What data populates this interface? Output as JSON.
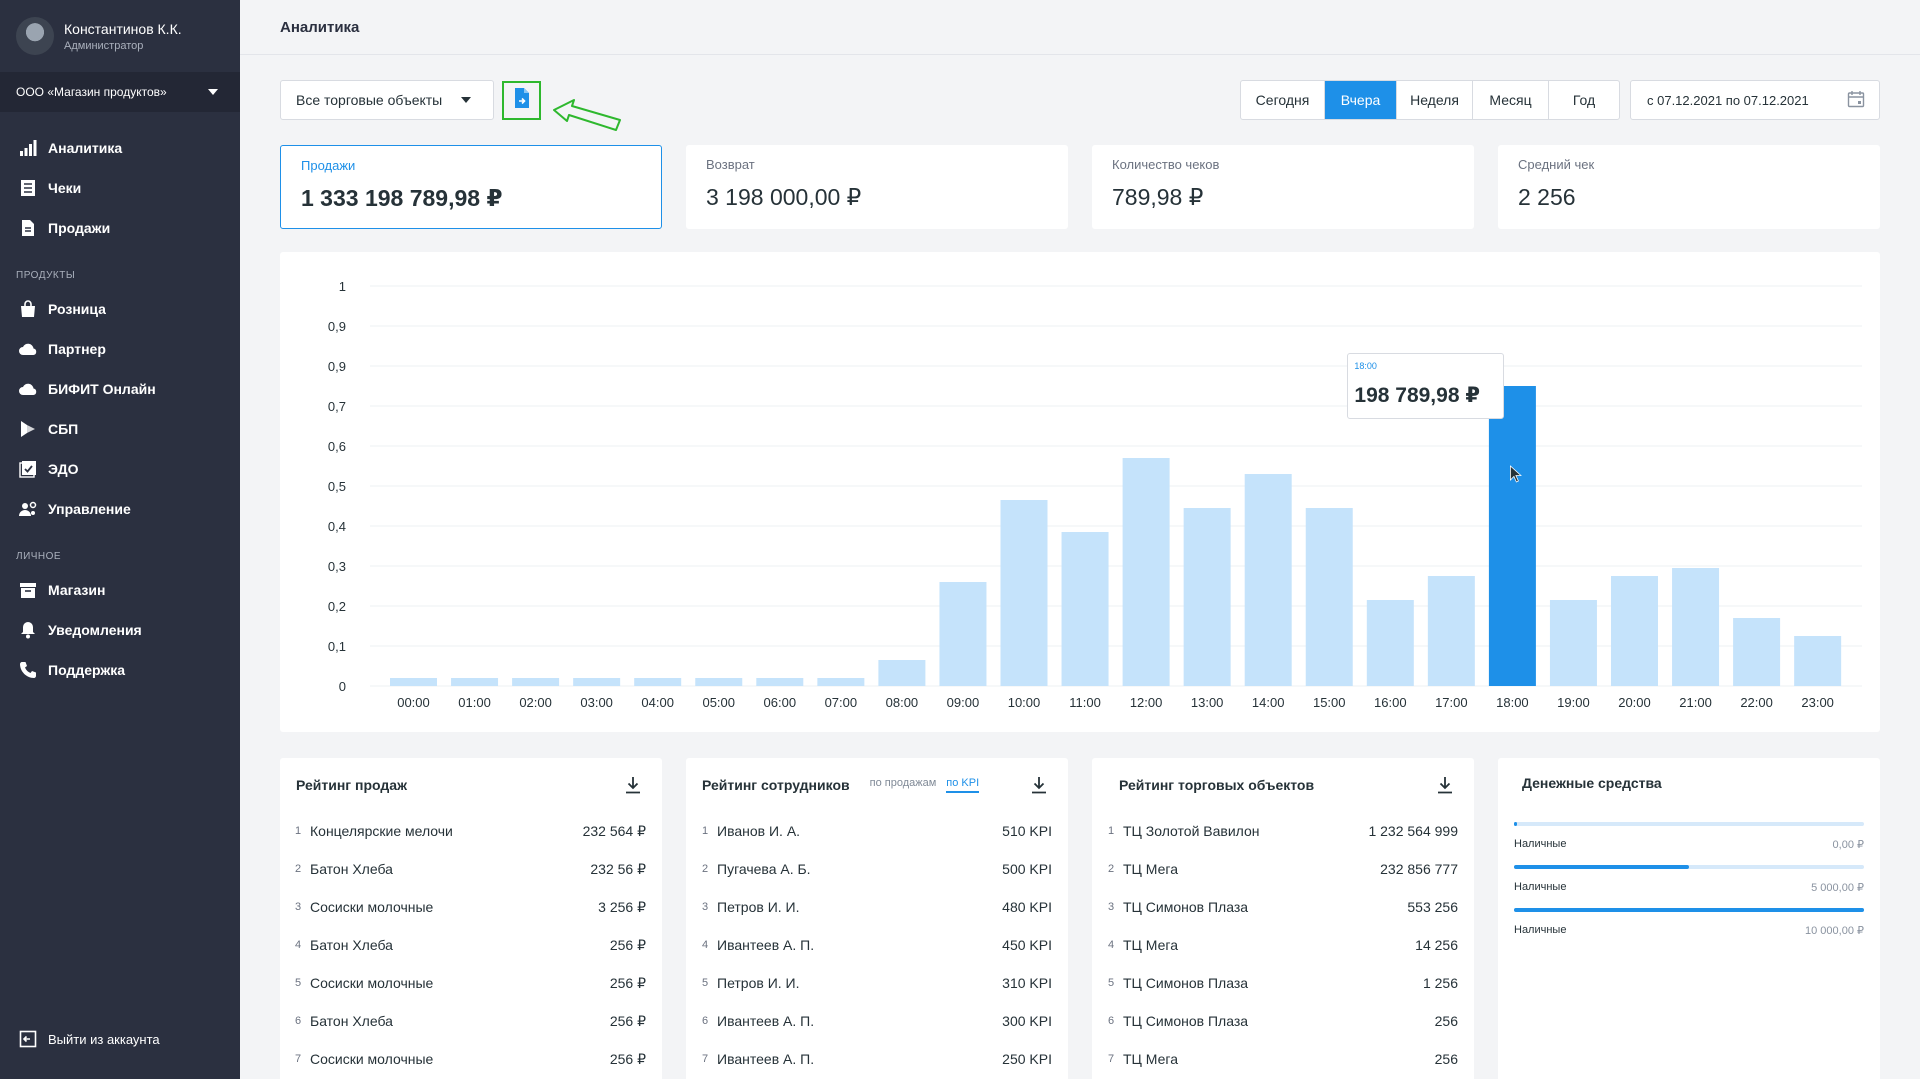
{
  "profile": {
    "name": "Константинов К.К.",
    "role": "Администратор"
  },
  "company": "ООО «Магазин продуктов»",
  "nav": {
    "main": [
      {
        "label": "Аналитика",
        "icon": "bar-chart-icon"
      },
      {
        "label": "Чеки",
        "icon": "receipt-icon"
      },
      {
        "label": "Продажи",
        "icon": "document-icon"
      }
    ],
    "products_title": "ПРОДУКТЫ",
    "products": [
      {
        "label": "Розница",
        "icon": "shopping-bag-icon"
      },
      {
        "label": "Партнер",
        "icon": "cloud-icon"
      },
      {
        "label": "БИФИТ Онлайн",
        "icon": "cloud-icon"
      },
      {
        "label": "СБП",
        "icon": "sbp-logo-icon"
      },
      {
        "label": "ЭДО",
        "icon": "edo-icon"
      },
      {
        "label": "Управление",
        "icon": "people-gear-icon"
      }
    ],
    "personal_title": "ЛИЧНОЕ",
    "personal": [
      {
        "label": "Магазин",
        "icon": "store-box-icon"
      },
      {
        "label": "Уведомления",
        "icon": "bell-icon"
      },
      {
        "label": "Поддержка",
        "icon": "phone-icon"
      }
    ],
    "logout": "Выйти из аккаунта"
  },
  "header": {
    "title": "Аналитика"
  },
  "toolbar": {
    "objects_select": "Все торговые объекты",
    "periods": [
      "Сегодня",
      "Вчера",
      "Неделя",
      "Месяц",
      "Год"
    ],
    "active_period": "Вчера",
    "date_range": "с 07.12.2021 по 07.12.2021"
  },
  "kpis": [
    {
      "label": "Продажи",
      "value": "1 333 198 789,98 ₽",
      "active": true
    },
    {
      "label": "Возврат",
      "value": "3 198 000,00 ₽"
    },
    {
      "label": "Количество чеков",
      "value": "789,98 ₽"
    },
    {
      "label": "Средний чек",
      "value": "2 256"
    }
  ],
  "colors": {
    "accent": "#1e90e8",
    "bar": "#c5e3fb",
    "sidebar": "#2b3040",
    "annotation": "#2eb82e"
  },
  "chart_data": {
    "type": "bar",
    "categories": [
      "00:00",
      "01:00",
      "02:00",
      "03:00",
      "04:00",
      "05:00",
      "06:00",
      "07:00",
      "08:00",
      "09:00",
      "10:00",
      "11:00",
      "12:00",
      "13:00",
      "14:00",
      "15:00",
      "16:00",
      "17:00",
      "18:00",
      "19:00",
      "20:00",
      "21:00",
      "22:00",
      "23:00"
    ],
    "values": [
      0.02,
      0.02,
      0.02,
      0.02,
      0.02,
      0.02,
      0.02,
      0.02,
      0.065,
      0.26,
      0.465,
      0.385,
      0.57,
      0.445,
      0.53,
      0.445,
      0.215,
      0.275,
      0.75,
      0.215,
      0.275,
      0.295,
      0.17,
      0.125
    ],
    "y_ticks": [
      "0",
      "0,1",
      "0,2",
      "0,3",
      "0,4",
      "0,5",
      "0,6",
      "0,7",
      "0,9",
      "0,9",
      "1"
    ],
    "ylim": [
      0,
      1
    ],
    "highlight_index": 18,
    "tooltip": {
      "time": "18:00",
      "value": "198 789,98 ₽"
    },
    "grid": true
  },
  "sales_rating": {
    "title": "Рейтинг продаж",
    "rows": [
      {
        "n": "1",
        "label": "Концелярские мелочи",
        "value": "232 564 ₽"
      },
      {
        "n": "2",
        "label": "Батон Хлеба",
        "value": "232 56 ₽"
      },
      {
        "n": "3",
        "label": "Сосиски молочные",
        "value": "3 256 ₽"
      },
      {
        "n": "4",
        "label": "Батон Хлеба",
        "value": "256 ₽"
      },
      {
        "n": "5",
        "label": "Сосиски молочные",
        "value": "256 ₽"
      },
      {
        "n": "6",
        "label": "Батон Хлеба",
        "value": "256 ₽"
      },
      {
        "n": "7",
        "label": "Сосиски молочные",
        "value": "256 ₽"
      }
    ]
  },
  "staff_rating": {
    "title": "Рейтинг сотрудников",
    "switch": [
      "по продажам",
      "по KPI"
    ],
    "active_switch": "по KPI",
    "rows": [
      {
        "n": "1",
        "label": "Иванов И. А.",
        "value": "510 KPI"
      },
      {
        "n": "2",
        "label": "Пугачева А. Б.",
        "value": "500 KPI"
      },
      {
        "n": "3",
        "label": "Петров И. И.",
        "value": "480 KPI"
      },
      {
        "n": "4",
        "label": "Ивантеев А. П.",
        "value": "450 KPI"
      },
      {
        "n": "5",
        "label": "Петров И. И.",
        "value": "310 KPI"
      },
      {
        "n": "6",
        "label": "Ивантеев А. П.",
        "value": "300 KPI"
      },
      {
        "n": "7",
        "label": "Ивантеев А. П.",
        "value": "250 KPI"
      }
    ]
  },
  "objects_rating": {
    "title": "Рейтинг торговых объектов",
    "rows": [
      {
        "n": "1",
        "label": "ТЦ Золотой Вавилон",
        "value": "1 232 564 999"
      },
      {
        "n": "2",
        "label": "ТЦ Мега",
        "value": "232 856 777"
      },
      {
        "n": "3",
        "label": "ТЦ Симонов Плаза",
        "value": "553 256"
      },
      {
        "n": "4",
        "label": "ТЦ Мега",
        "value": "14 256"
      },
      {
        "n": "5",
        "label": "ТЦ Симонов Плаза",
        "value": "1 256"
      },
      {
        "n": "6",
        "label": "ТЦ Симонов Плаза",
        "value": "256"
      },
      {
        "n": "7",
        "label": "ТЦ Мега",
        "value": "256"
      }
    ]
  },
  "money": {
    "title": "Денежные средства",
    "rows": [
      {
        "label": "Наличные",
        "value": "0,00 ₽",
        "fill": 0.005
      },
      {
        "label": "Наличные",
        "value": "5 000,00 ₽",
        "fill": 0.5
      },
      {
        "label": "Наличные",
        "value": "10 000,00 ₽",
        "fill": 1.0
      }
    ]
  }
}
